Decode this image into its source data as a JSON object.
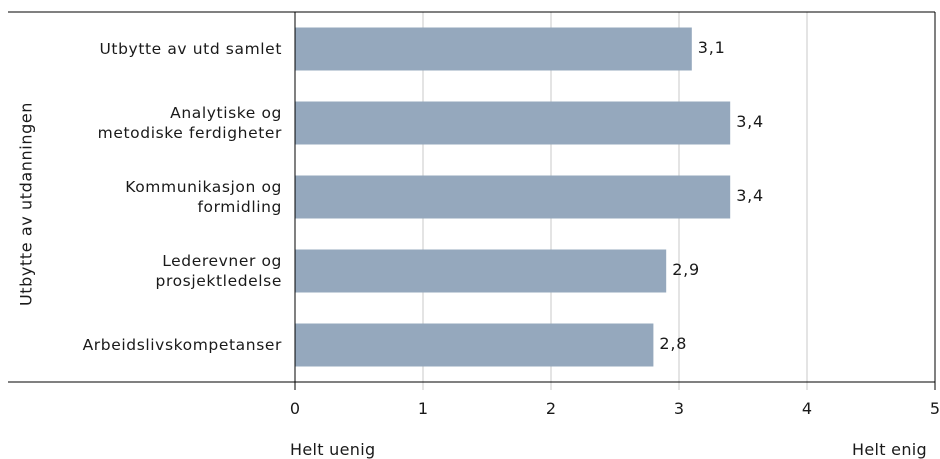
{
  "chart_data": {
    "type": "bar",
    "orientation": "horizontal",
    "categories": [
      "Utbytte av utd samlet",
      "Analytiske og\nmetodiske ferdigheter",
      "Kommunikasjon og\nformidling",
      "Lederevner og\nprosjektledelse",
      "Arbeidslivskompetanser"
    ],
    "values": [
      3.1,
      3.4,
      3.4,
      2.9,
      2.8
    ],
    "value_labels": [
      "3,1",
      "3,4",
      "3,4",
      "2,9",
      "2,8"
    ],
    "ylabel": "Utbytte av utdanningen",
    "xlim": [
      0,
      5
    ],
    "xticks": [
      "0",
      "1",
      "2",
      "3",
      "4",
      "5"
    ],
    "x_end_labels": {
      "left": "Helt uenig",
      "right": "Helt enig"
    },
    "grid": "vertical",
    "bar_color": "#95a8bd"
  }
}
